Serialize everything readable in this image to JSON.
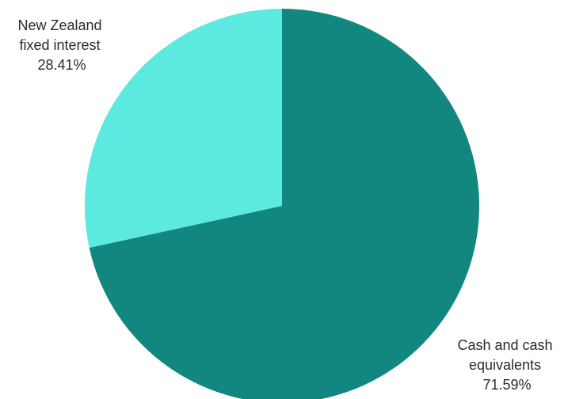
{
  "chart_data": {
    "type": "pie",
    "categories": [
      "Cash and cash equivalents",
      "New Zealand fixed interest"
    ],
    "values": [
      71.59,
      28.41
    ],
    "value_labels": [
      "71.59%",
      "28.41%"
    ],
    "label_lines": [
      [
        "Cash and cash",
        "equivalents",
        "71.59%"
      ],
      [
        "New Zealand",
        "fixed interest",
        "28.41%"
      ]
    ],
    "colors": [
      "#118780",
      "#5ce9e0"
    ],
    "start": "12 o'clock",
    "direction": "clockwise"
  }
}
